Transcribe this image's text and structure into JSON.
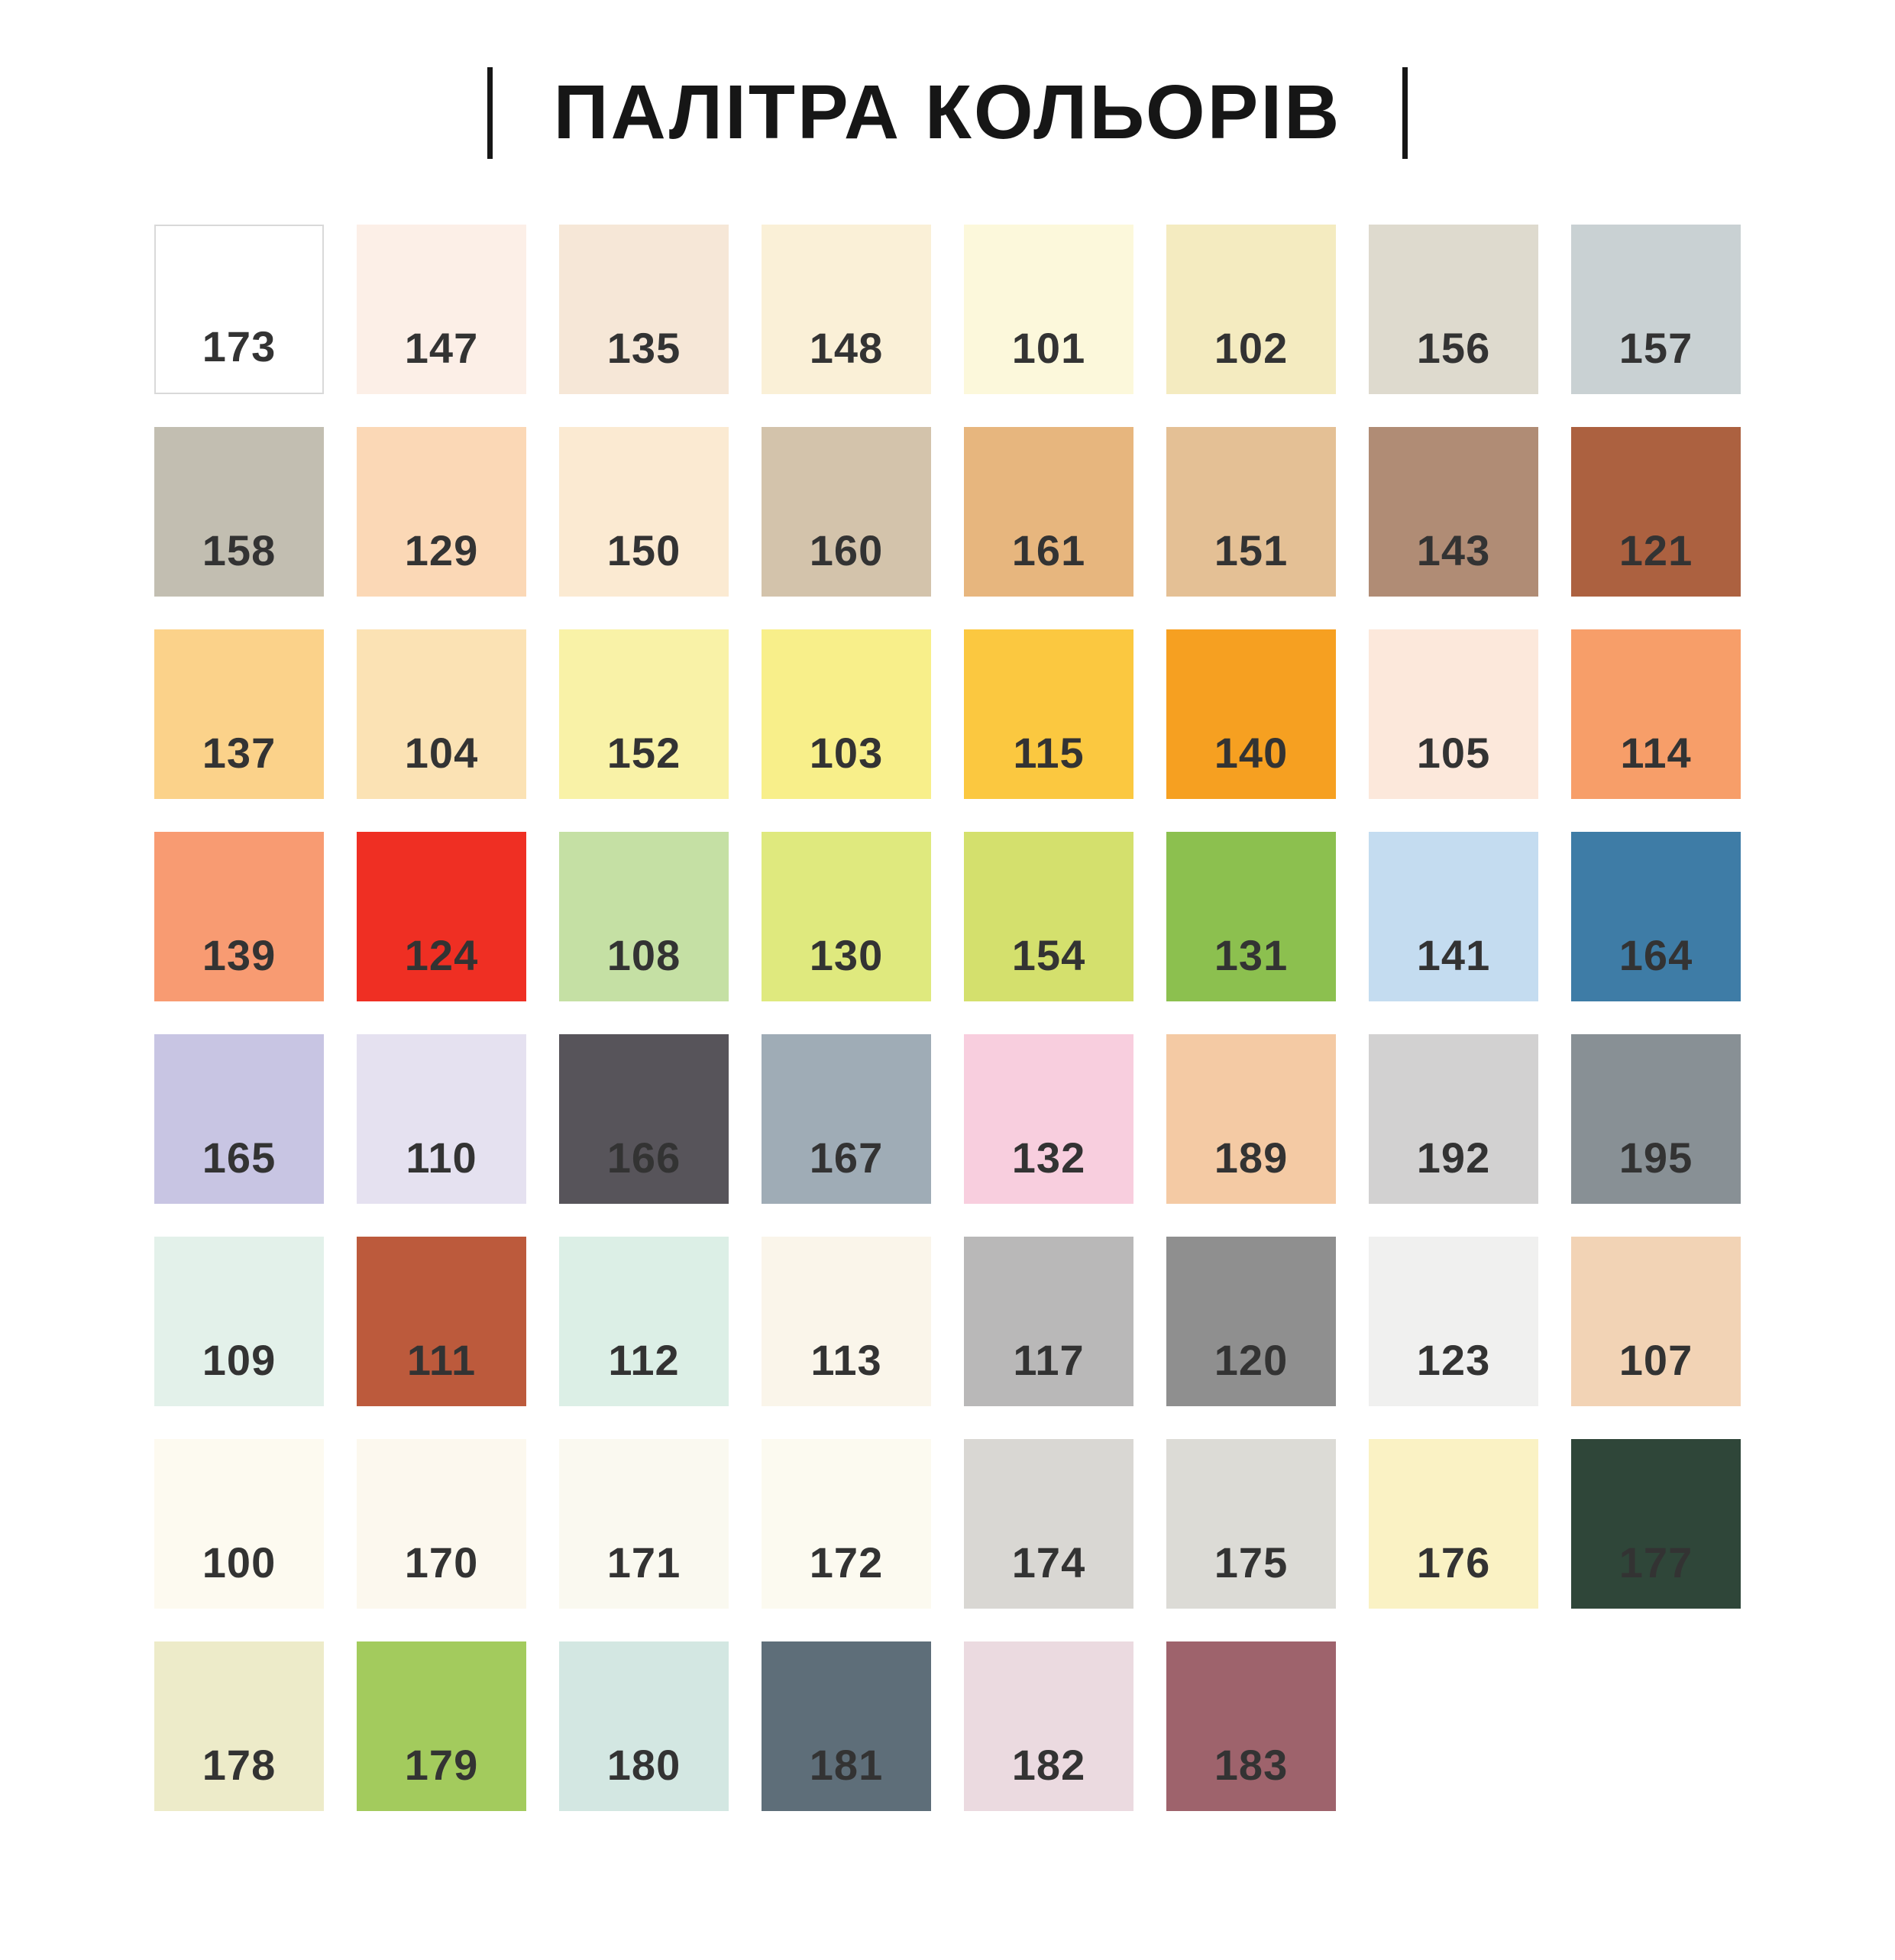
{
  "header": {
    "title": "ПАЛІТРА КОЛЬОРІВ"
  },
  "palette": {
    "columns": 8,
    "code_text_color": "#333333",
    "swatches": [
      {
        "code": "173",
        "color": "#FFFFFF",
        "border": "#D9D9D9"
      },
      {
        "code": "147",
        "color": "#FCEFE7"
      },
      {
        "code": "135",
        "color": "#F6E7D7"
      },
      {
        "code": "148",
        "color": "#FAF0D7"
      },
      {
        "code": "101",
        "color": "#FCF8DB"
      },
      {
        "code": "102",
        "color": "#F4EBC0"
      },
      {
        "code": "156",
        "color": "#DEDACE"
      },
      {
        "code": "157",
        "color": "#C9D1D3"
      },
      {
        "code": "158",
        "color": "#C2BEB1"
      },
      {
        "code": "129",
        "color": "#FBD8B6"
      },
      {
        "code": "150",
        "color": "#FBEAD2"
      },
      {
        "code": "160",
        "color": "#D3C3AB"
      },
      {
        "code": "161",
        "color": "#E7B67E"
      },
      {
        "code": "151",
        "color": "#E4C095"
      },
      {
        "code": "143",
        "color": "#B08C75"
      },
      {
        "code": "121",
        "color": "#AC6140"
      },
      {
        "code": "137",
        "color": "#FBD28A"
      },
      {
        "code": "104",
        "color": "#FBE2B4"
      },
      {
        "code": "152",
        "color": "#F9F2A7"
      },
      {
        "code": "103",
        "color": "#F8EF8A"
      },
      {
        "code": "115",
        "color": "#FBC840"
      },
      {
        "code": "140",
        "color": "#F6A021"
      },
      {
        "code": "105",
        "color": "#FCE8DB"
      },
      {
        "code": "114",
        "color": "#F79E69"
      },
      {
        "code": "139",
        "color": "#F89B72"
      },
      {
        "code": "124",
        "color": "#EF2F23"
      },
      {
        "code": "108",
        "color": "#C5E0A4"
      },
      {
        "code": "130",
        "color": "#DFE97E"
      },
      {
        "code": "154",
        "color": "#D4E06D"
      },
      {
        "code": "131",
        "color": "#8CC04F"
      },
      {
        "code": "141",
        "color": "#C4DCF0"
      },
      {
        "code": "164",
        "color": "#3E7CA6"
      },
      {
        "code": "165",
        "color": "#C8C5E3"
      },
      {
        "code": "110",
        "color": "#E5E1F0"
      },
      {
        "code": "166",
        "color": "#57545A"
      },
      {
        "code": "167",
        "color": "#9FACB6"
      },
      {
        "code": "132",
        "color": "#F8CEDE"
      },
      {
        "code": "189",
        "color": "#F4CAA4"
      },
      {
        "code": "192",
        "color": "#D2D1D1"
      },
      {
        "code": "195",
        "color": "#889095"
      },
      {
        "code": "109",
        "color": "#E3F1EA"
      },
      {
        "code": "111",
        "color": "#BC5A3C"
      },
      {
        "code": "112",
        "color": "#DCEFE6"
      },
      {
        "code": "113",
        "color": "#FAF5EA"
      },
      {
        "code": "117",
        "color": "#B9B8B8"
      },
      {
        "code": "120",
        "color": "#8F8F8F"
      },
      {
        "code": "123",
        "color": "#F0F0EF"
      },
      {
        "code": "107",
        "color": "#F2D3B5"
      },
      {
        "code": "100",
        "color": "#FDFAF0"
      },
      {
        "code": "170",
        "color": "#FCF8EE"
      },
      {
        "code": "171",
        "color": "#FAF9F0"
      },
      {
        "code": "172",
        "color": "#FCFAF0"
      },
      {
        "code": "174",
        "color": "#D9D7D3"
      },
      {
        "code": "175",
        "color": "#DCDBD6"
      },
      {
        "code": "176",
        "color": "#FAF2C4"
      },
      {
        "code": "177",
        "color": "#2F4639"
      },
      {
        "code": "178",
        "color": "#EDEBC9"
      },
      {
        "code": "179",
        "color": "#A3CB5D"
      },
      {
        "code": "180",
        "color": "#D3E7E2"
      },
      {
        "code": "181",
        "color": "#5E6E79"
      },
      {
        "code": "182",
        "color": "#EBDAE0"
      },
      {
        "code": "183",
        "color": "#9E636C"
      }
    ]
  },
  "chart_data": {
    "type": "table",
    "title": "ПАЛІТРА КОЛЬОРІВ",
    "columns": [
      "code",
      "hex_color"
    ],
    "rows": [
      [
        "173",
        "#FFFFFF"
      ],
      [
        "147",
        "#FCEFE7"
      ],
      [
        "135",
        "#F6E7D7"
      ],
      [
        "148",
        "#FAF0D7"
      ],
      [
        "101",
        "#FCF8DB"
      ],
      [
        "102",
        "#F4EBC0"
      ],
      [
        "156",
        "#DEDACE"
      ],
      [
        "157",
        "#C9D1D3"
      ],
      [
        "158",
        "#C2BEB1"
      ],
      [
        "129",
        "#FBD8B6"
      ],
      [
        "150",
        "#FBEAD2"
      ],
      [
        "160",
        "#D3C3AB"
      ],
      [
        "161",
        "#E7B67E"
      ],
      [
        "151",
        "#E4C095"
      ],
      [
        "143",
        "#B08C75"
      ],
      [
        "121",
        "#AC6140"
      ],
      [
        "137",
        "#FBD28A"
      ],
      [
        "104",
        "#FBE2B4"
      ],
      [
        "152",
        "#F9F2A7"
      ],
      [
        "103",
        "#F8EF8A"
      ],
      [
        "115",
        "#FBC840"
      ],
      [
        "140",
        "#F6A021"
      ],
      [
        "105",
        "#FCE8DB"
      ],
      [
        "114",
        "#F79E69"
      ],
      [
        "139",
        "#F89B72"
      ],
      [
        "124",
        "#EF2F23"
      ],
      [
        "108",
        "#C5E0A4"
      ],
      [
        "130",
        "#DFE97E"
      ],
      [
        "154",
        "#D4E06D"
      ],
      [
        "131",
        "#8CC04F"
      ],
      [
        "141",
        "#C4DCF0"
      ],
      [
        "164",
        "#3E7CA6"
      ],
      [
        "165",
        "#C8C5E3"
      ],
      [
        "110",
        "#E5E1F0"
      ],
      [
        "166",
        "#57545A"
      ],
      [
        "167",
        "#9FACB6"
      ],
      [
        "132",
        "#F8CEDE"
      ],
      [
        "189",
        "#F4CAA4"
      ],
      [
        "192",
        "#D2D1D1"
      ],
      [
        "195",
        "#889095"
      ],
      [
        "109",
        "#E3F1EA"
      ],
      [
        "111",
        "#BC5A3C"
      ],
      [
        "112",
        "#DCEFE6"
      ],
      [
        "113",
        "#FAF5EA"
      ],
      [
        "117",
        "#B9B8B8"
      ],
      [
        "120",
        "#8F8F8F"
      ],
      [
        "123",
        "#F0F0EF"
      ],
      [
        "107",
        "#F2D3B5"
      ],
      [
        "100",
        "#FDFAF0"
      ],
      [
        "170",
        "#FCF8EE"
      ],
      [
        "171",
        "#FAF9F0"
      ],
      [
        "172",
        "#FCFAF0"
      ],
      [
        "174",
        "#D9D7D3"
      ],
      [
        "175",
        "#DCDBD6"
      ],
      [
        "176",
        "#FAF2C4"
      ],
      [
        "177",
        "#2F4639"
      ],
      [
        "178",
        "#EDEBC9"
      ],
      [
        "179",
        "#A3CB5D"
      ],
      [
        "180",
        "#D3E7E2"
      ],
      [
        "181",
        "#5E6E79"
      ],
      [
        "182",
        "#EBDAE0"
      ],
      [
        "183",
        "#9E636C"
      ]
    ]
  }
}
